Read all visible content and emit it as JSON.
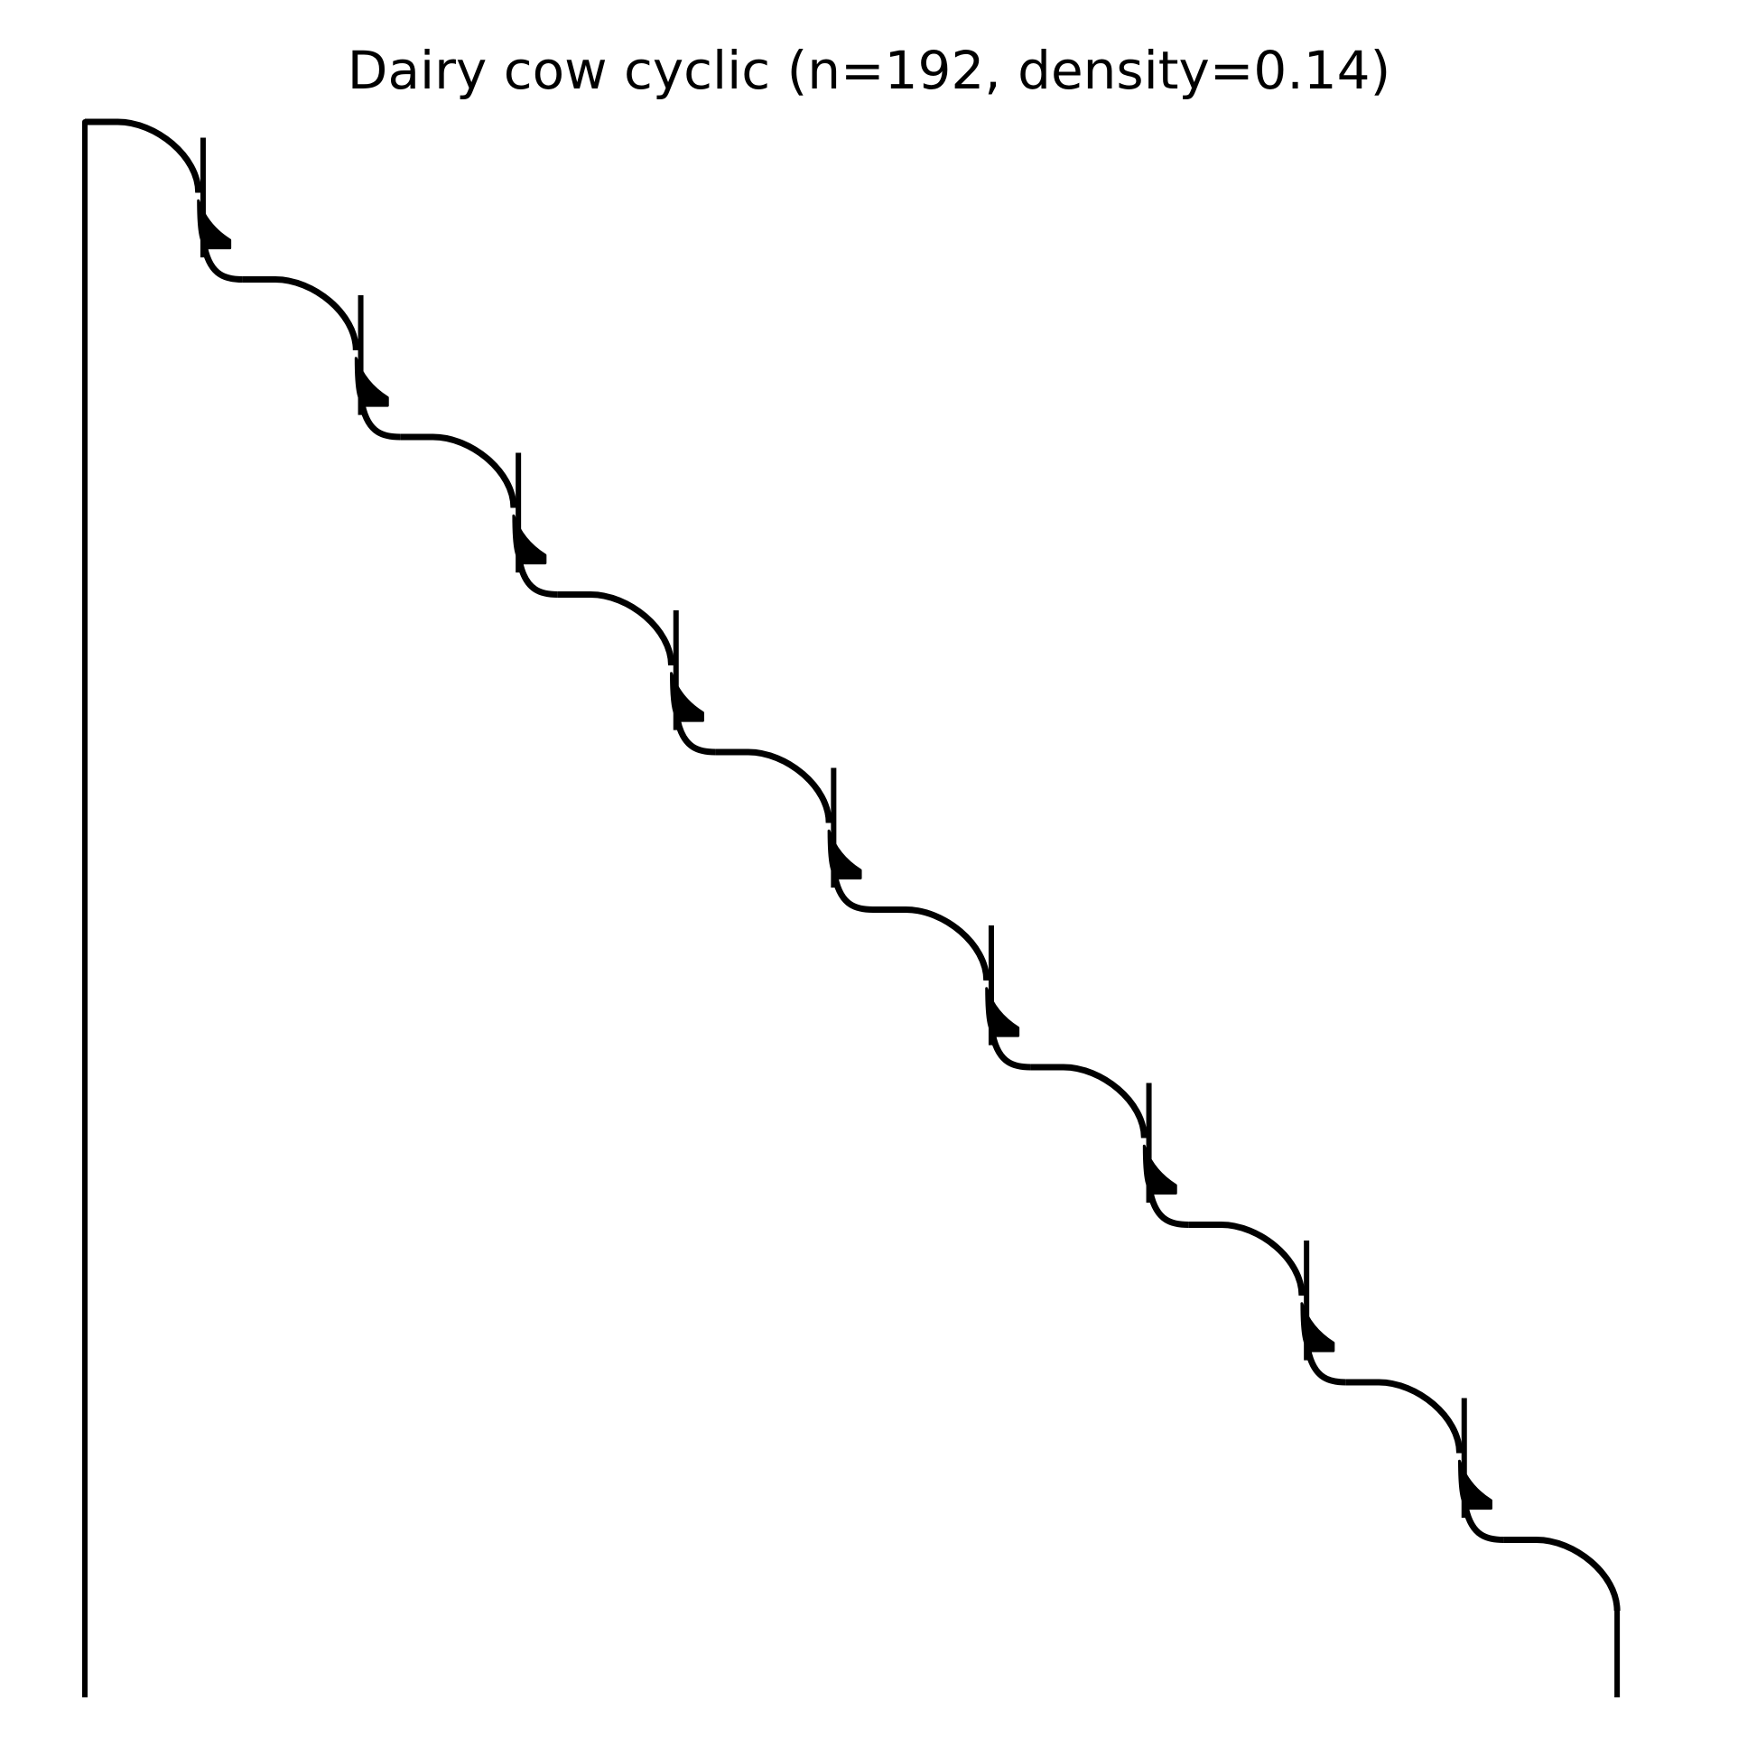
{
  "chart_data": {
    "type": "heatmap",
    "subtype": "sparsity-pattern",
    "title": "Dairy cow cyclic (n=192, density=0.14)",
    "xlabel": "",
    "ylabel": "",
    "n": 192,
    "density": 0.14,
    "pattern": "cyclic block-banded",
    "blocks": 10,
    "block_size": 19.2,
    "axis_visible": false,
    "grid": false,
    "marker_color": "#000000"
  }
}
